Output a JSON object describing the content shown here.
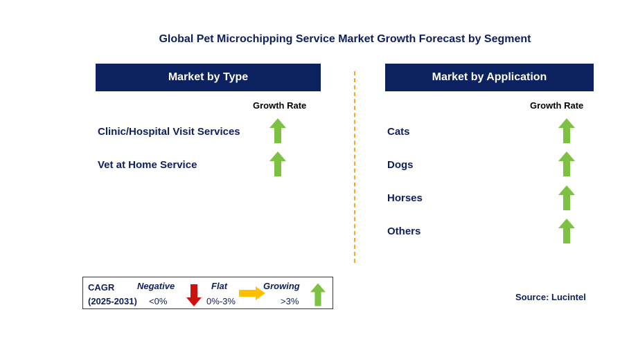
{
  "title": "Global Pet Microchipping Service Market Growth Forecast by Segment",
  "colors": {
    "header": "#0c2160",
    "growing": "#7dc143",
    "negative": "#cc1111",
    "flat": "#ffc000",
    "divider": "#f5a623"
  },
  "left_panel": {
    "header": "Market by Type",
    "growth_rate_label": "Growth Rate",
    "rows": [
      {
        "label": "Clinic/Hospital Visit Services",
        "trend": "growing"
      },
      {
        "label": "Vet at Home Service",
        "trend": "growing"
      }
    ]
  },
  "right_panel": {
    "header": "Market by Application",
    "growth_rate_label": "Growth Rate",
    "rows": [
      {
        "label": "Cats",
        "trend": "growing"
      },
      {
        "label": "Dogs",
        "trend": "growing"
      },
      {
        "label": "Horses",
        "trend": "growing"
      },
      {
        "label": "Others",
        "trend": "growing"
      }
    ]
  },
  "legend": {
    "cagr": "CAGR",
    "period": "(2025-2031)",
    "negative_label": "Negative",
    "negative_range": "<0%",
    "flat_label": "Flat",
    "flat_range": "0%-3%",
    "growing_label": "Growing",
    "growing_range": ">3%"
  },
  "source": "Source: Lucintel"
}
